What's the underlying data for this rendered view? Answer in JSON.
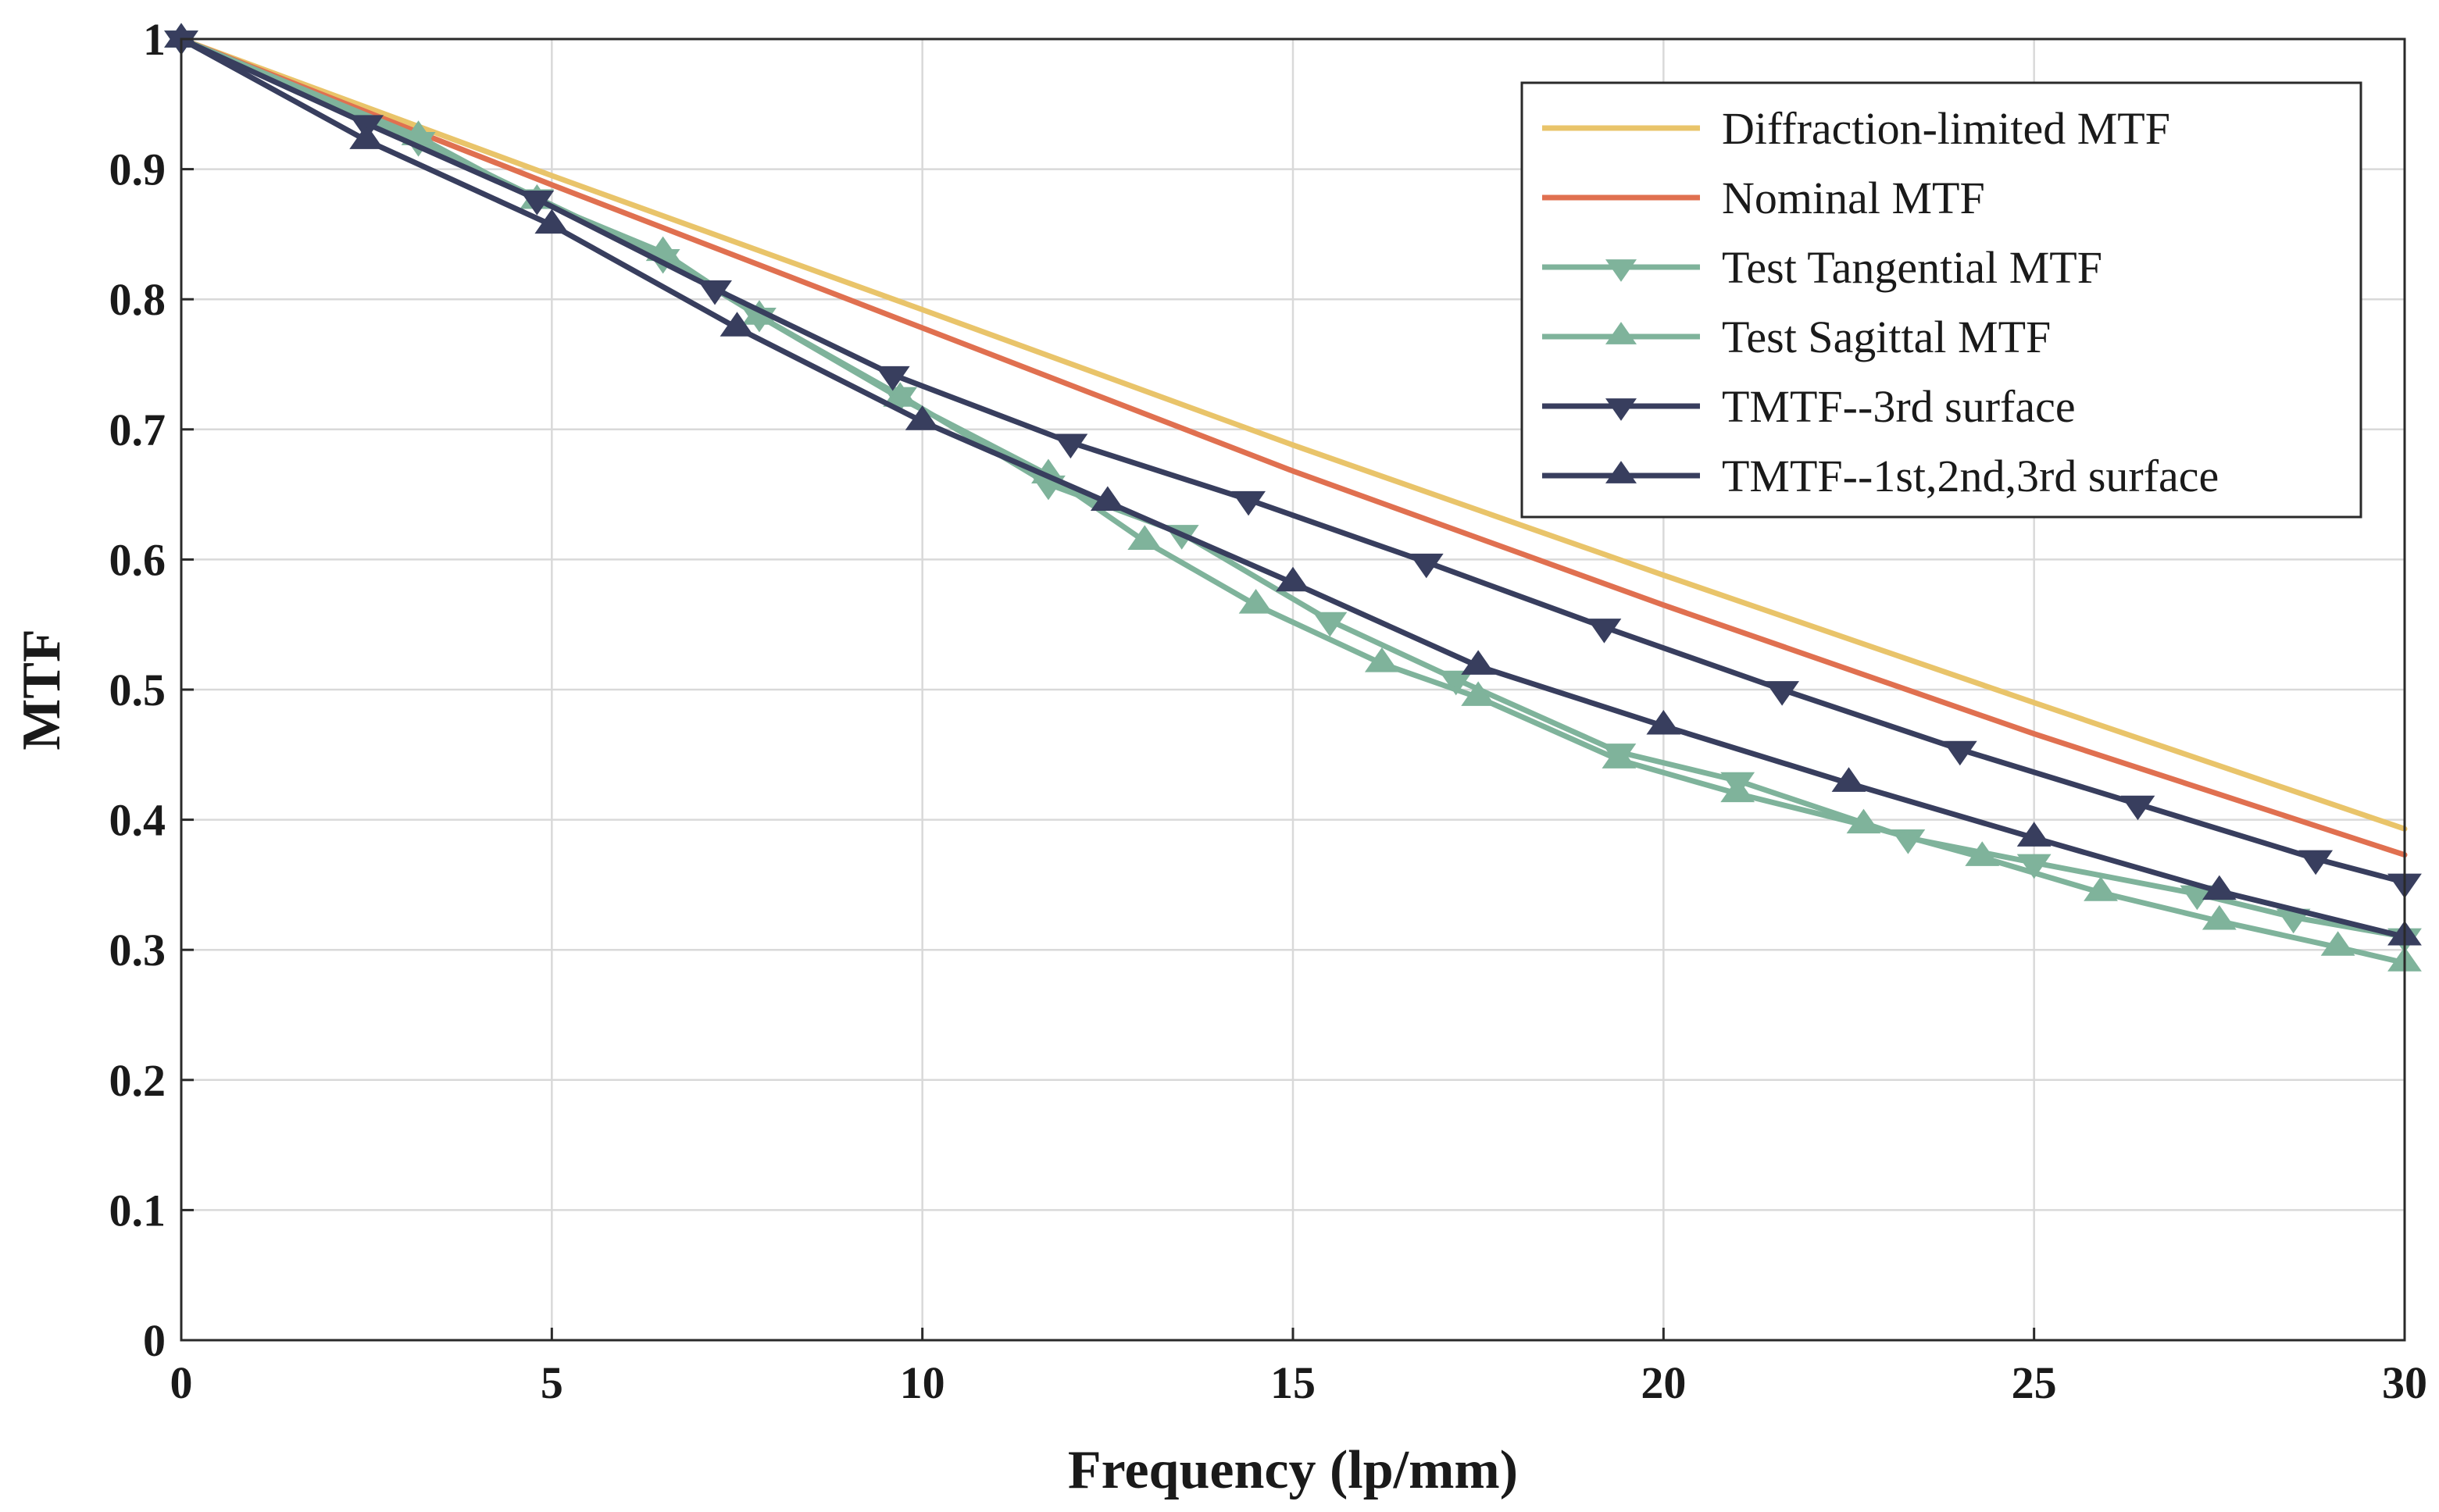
{
  "chart_data": {
    "type": "line",
    "title": "",
    "xlabel": "Frequency (lp/mm)",
    "ylabel": "MTF",
    "xlim": [
      0,
      30
    ],
    "ylim": [
      0,
      1
    ],
    "grid": true,
    "legend_position": "top-right",
    "x_ticks": [
      "0",
      "5",
      "10",
      "15",
      "20",
      "25",
      "30"
    ],
    "y_ticks": [
      "0",
      "0.1",
      "0.2",
      "0.3",
      "0.4",
      "0.5",
      "0.6",
      "0.7",
      "0.8",
      "0.9",
      "1"
    ],
    "series": [
      {
        "name": "Diffraction-limited MTF",
        "color": "#E9C46A",
        "marker": "none",
        "points": [
          [
            0,
            1
          ],
          [
            5,
            0.895
          ],
          [
            10,
            0.792
          ],
          [
            15,
            0.688
          ],
          [
            20,
            0.588
          ],
          [
            25,
            0.49
          ],
          [
            30,
            0.393
          ]
        ]
      },
      {
        "name": "Nominal MTF",
        "color": "#E07050",
        "marker": "none",
        "points": [
          [
            0,
            1
          ],
          [
            5,
            0.888
          ],
          [
            10,
            0.778
          ],
          [
            15,
            0.668
          ],
          [
            20,
            0.565
          ],
          [
            25,
            0.466
          ],
          [
            30,
            0.373
          ]
        ]
      },
      {
        "name": "Test Tangential MTF",
        "color": "#7FB39B",
        "marker": "triangle-down",
        "points": [
          [
            0,
            1
          ],
          [
            3.2,
            0.922
          ],
          [
            4.8,
            0.878
          ],
          [
            6.5,
            0.832
          ],
          [
            7.8,
            0.787
          ],
          [
            9.7,
            0.726
          ],
          [
            11.7,
            0.658
          ],
          [
            13.5,
            0.62
          ],
          [
            15.5,
            0.553
          ],
          [
            17.2,
            0.508
          ],
          [
            19.4,
            0.452
          ],
          [
            21,
            0.43
          ],
          [
            23.3,
            0.386
          ],
          [
            25,
            0.367
          ],
          [
            27.2,
            0.343
          ],
          [
            28.5,
            0.325
          ],
          [
            30,
            0.31
          ]
        ]
      },
      {
        "name": "Test Sagittal MTF",
        "color": "#7FB39B",
        "marker": "triangle-up",
        "points": [
          [
            0,
            1
          ],
          [
            3.2,
            0.925
          ],
          [
            4.8,
            0.876
          ],
          [
            6.5,
            0.836
          ],
          [
            7.8,
            0.787
          ],
          [
            9.7,
            0.724
          ],
          [
            11.7,
            0.665
          ],
          [
            13,
            0.614
          ],
          [
            14.5,
            0.565
          ],
          [
            16.2,
            0.52
          ],
          [
            17.5,
            0.494
          ],
          [
            19.4,
            0.446
          ],
          [
            21,
            0.42
          ],
          [
            22.7,
            0.396
          ],
          [
            24.3,
            0.371
          ],
          [
            25.9,
            0.344
          ],
          [
            27.5,
            0.322
          ],
          [
            29.1,
            0.302
          ],
          [
            30,
            0.29
          ]
        ]
      },
      {
        "name": "TMTF--3rd surface",
        "color": "#383E5E",
        "marker": "triangle-down",
        "points": [
          [
            0,
            1
          ],
          [
            2.5,
            0.935
          ],
          [
            4.8,
            0.877
          ],
          [
            7.2,
            0.808
          ],
          [
            9.6,
            0.742
          ],
          [
            12,
            0.69
          ],
          [
            14.4,
            0.646
          ],
          [
            16.8,
            0.598
          ],
          [
            19.2,
            0.548
          ],
          [
            21.6,
            0.5
          ],
          [
            24,
            0.454
          ],
          [
            26.4,
            0.412
          ],
          [
            28.8,
            0.37
          ],
          [
            30,
            0.352
          ]
        ]
      },
      {
        "name": "TMTF--1st,2nd,3rd surface",
        "color": "#383E5E",
        "marker": "triangle-up",
        "points": [
          [
            0,
            1
          ],
          [
            2.5,
            0.922
          ],
          [
            5,
            0.857
          ],
          [
            7.5,
            0.778
          ],
          [
            10,
            0.706
          ],
          [
            12.5,
            0.644
          ],
          [
            15,
            0.582
          ],
          [
            17.5,
            0.518
          ],
          [
            20,
            0.472
          ],
          [
            22.5,
            0.428
          ],
          [
            25,
            0.386
          ],
          [
            27.5,
            0.345
          ],
          [
            30,
            0.31
          ]
        ]
      }
    ]
  }
}
